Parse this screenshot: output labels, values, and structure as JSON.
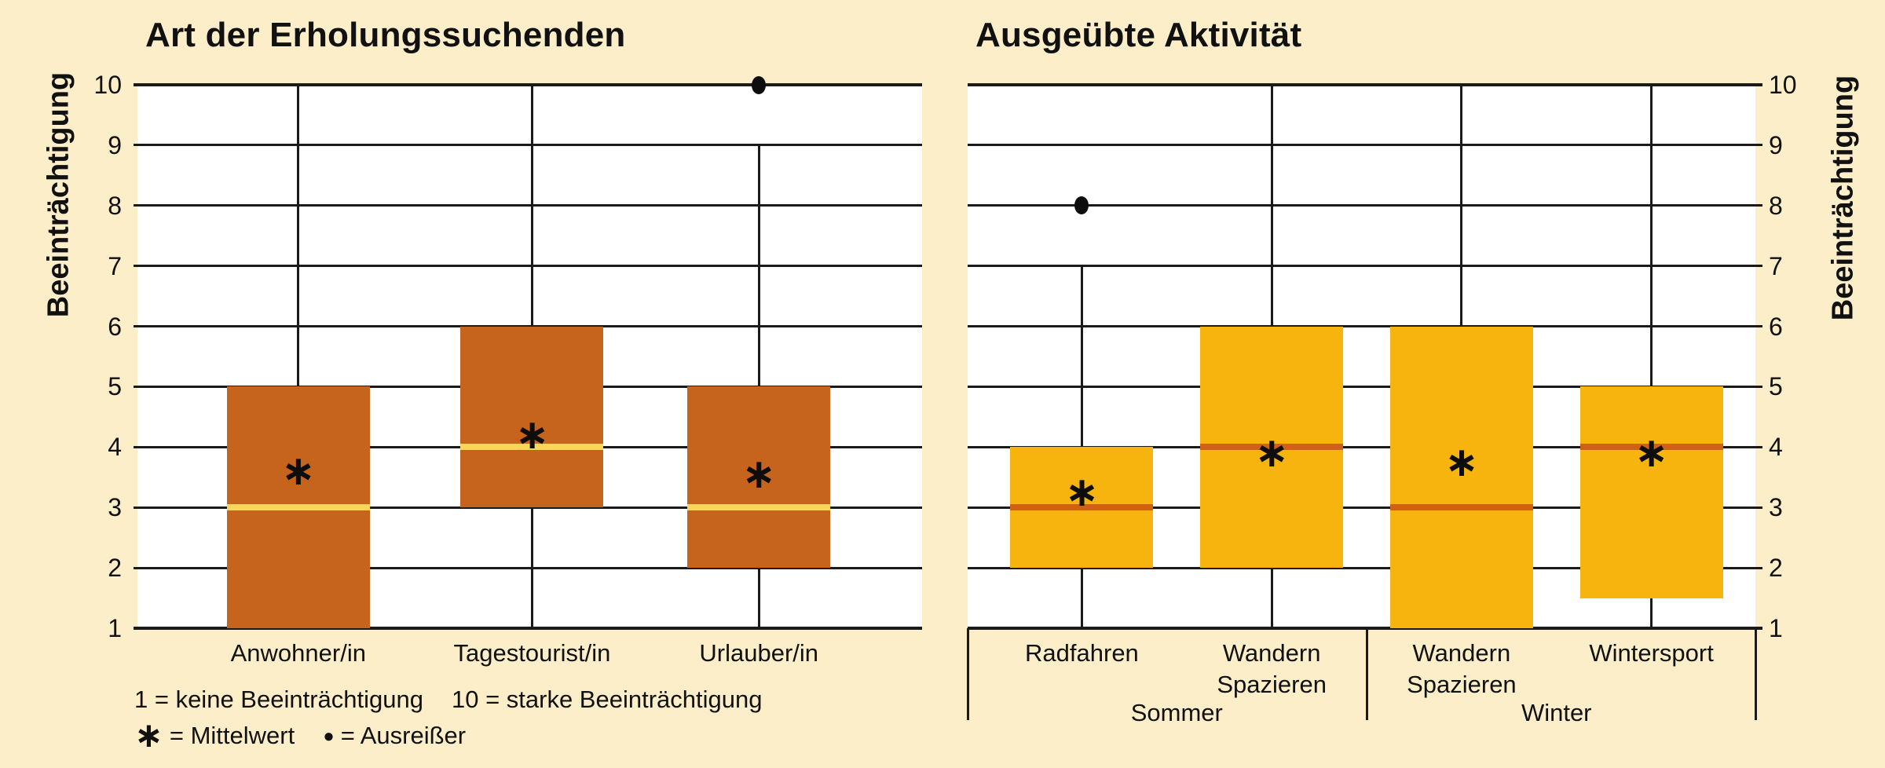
{
  "page": {
    "background": "#FBEEC8",
    "plot_background": "#FFFFFF",
    "grid_color": "#1A1A1A",
    "text_color": "#111111"
  },
  "legend": {
    "scale_min": "1 = keine Beeinträchtigung",
    "scale_max": "10 = starke Beeinträchtigung",
    "mean_symbol": "∗",
    "mean_text": "= Mittelwert",
    "outlier_symbol": "●",
    "outlier_text": "= Ausreißer"
  },
  "chart_data": [
    {
      "type": "box",
      "title": "Art der Erholungssuchenden",
      "ylabel": "Beeinträchtigung",
      "ylim": [
        1,
        10
      ],
      "yticks": [
        10,
        9,
        8,
        7,
        6,
        5,
        4,
        3,
        2,
        1
      ],
      "grid": true,
      "axis_side": "left",
      "box_color": "#C6631C",
      "median_color": "#FAD65A",
      "mean_marker": "asterisk",
      "outlier_marker": "dot",
      "series": [
        {
          "category": "Anwohner/in",
          "q1": 1,
          "median": 3,
          "q3": 5,
          "mean": 3.6,
          "whisker_high": 10,
          "whisker_low": 1,
          "outliers": []
        },
        {
          "category": "Tagestourist/in",
          "q1": 3,
          "median": 4,
          "q3": 6,
          "mean": 4.2,
          "whisker_high": 10,
          "whisker_low": 1,
          "outliers": []
        },
        {
          "category": "Urlauber/in",
          "q1": 2,
          "median": 3,
          "q3": 5,
          "mean": 3.55,
          "whisker_high": 9,
          "whisker_low": 1,
          "outliers": [
            10
          ]
        }
      ]
    },
    {
      "type": "box",
      "title": "Ausgeübte Aktivität",
      "ylabel": "Beeinträchtigung",
      "ylim": [
        1,
        10
      ],
      "yticks": [
        10,
        9,
        8,
        7,
        6,
        5,
        4,
        3,
        2,
        1
      ],
      "grid": true,
      "axis_side": "right",
      "box_color": "#F7B30E",
      "median_color": "#D06014",
      "mean_marker": "asterisk",
      "outlier_marker": "dot",
      "series": [
        {
          "category": "Radfahren",
          "category_line2": "",
          "group": "Sommer",
          "q1": 2,
          "median": 3,
          "q3": 4,
          "mean": 3.25,
          "whisker_high": 7,
          "whisker_low": 1,
          "outliers": [
            8
          ]
        },
        {
          "category": "Wandern",
          "category_line2": "Spazieren",
          "group": "Sommer",
          "q1": 2,
          "median": 4,
          "q3": 6,
          "mean": 3.9,
          "whisker_high": 10,
          "whisker_low": 1,
          "outliers": []
        },
        {
          "category": "Wandern",
          "category_line2": "Spazieren",
          "group": "Winter",
          "q1": 1,
          "median": 3,
          "q3": 6,
          "mean": 3.75,
          "whisker_high": 10,
          "whisker_low": 1,
          "outliers": []
        },
        {
          "category": "Wintersport",
          "category_line2": "",
          "group": "Winter",
          "q1": 1.5,
          "median": 4,
          "q3": 5,
          "mean": 3.9,
          "whisker_high": 10,
          "whisker_low": 1,
          "outliers": []
        }
      ],
      "groups": [
        {
          "label": "Sommer",
          "from": 0,
          "to": 1
        },
        {
          "label": "Winter",
          "from": 2,
          "to": 3
        }
      ]
    }
  ]
}
